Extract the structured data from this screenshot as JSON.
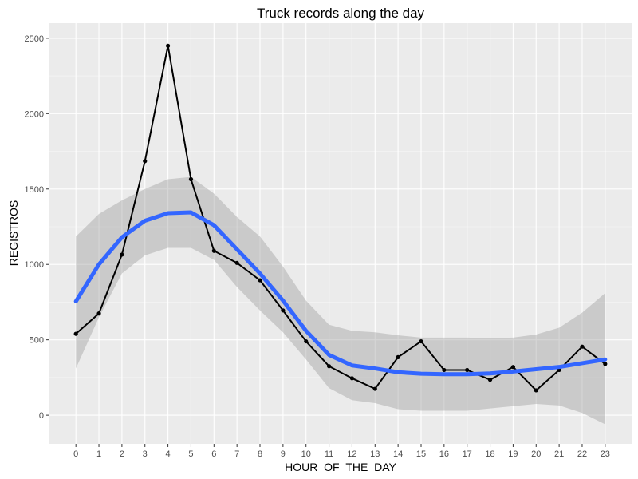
{
  "chart_data": {
    "type": "line",
    "title": "Truck records along the day",
    "xlabel": "HOUR_OF_THE_DAY",
    "ylabel": "REGISTROS",
    "x": [
      0,
      1,
      2,
      3,
      4,
      5,
      6,
      7,
      8,
      9,
      10,
      11,
      12,
      13,
      14,
      15,
      16,
      17,
      18,
      19,
      20,
      21,
      22,
      23
    ],
    "x_tick_labels": [
      "0",
      "1",
      "2",
      "3",
      "4",
      "5",
      "6",
      "7",
      "8",
      "9",
      "10",
      "11",
      "12",
      "13",
      "14",
      "15",
      "16",
      "17",
      "18",
      "19",
      "20",
      "21",
      "22",
      "23"
    ],
    "y_ticks": [
      0,
      500,
      1000,
      1500,
      2000,
      2500
    ],
    "y_tick_labels": [
      "0",
      "500",
      "1000",
      "1500",
      "2000",
      "2500"
    ],
    "xlim": [
      -1.15,
      24.15
    ],
    "ylim": [
      -190,
      2600
    ],
    "grid": true,
    "series": [
      {
        "kind": "line+points",
        "color": "#000000",
        "values": [
          540,
          675,
          1065,
          1685,
          2450,
          1565,
          1090,
          1010,
          895,
          695,
          490,
          325,
          245,
          175,
          385,
          490,
          300,
          300,
          235,
          320,
          165,
          300,
          455,
          340
        ]
      },
      {
        "kind": "smooth",
        "color": "#3366FF",
        "values": [
          755,
          1000,
          1180,
          1290,
          1340,
          1345,
          1260,
          1100,
          940,
          760,
          560,
          400,
          330,
          310,
          285,
          275,
          272,
          272,
          277,
          290,
          305,
          320,
          345,
          370
        ]
      }
    ],
    "confidence_band": {
      "color": "#999999",
      "lower": [
        310,
        650,
        940,
        1060,
        1110,
        1110,
        1030,
        850,
        695,
        550,
        370,
        180,
        100,
        80,
        40,
        30,
        30,
        30,
        45,
        60,
        75,
        65,
        15,
        -60
      ],
      "upper": [
        1185,
        1335,
        1425,
        1500,
        1565,
        1580,
        1470,
        1315,
        1185,
        985,
        760,
        600,
        560,
        550,
        530,
        515,
        515,
        515,
        510,
        515,
        535,
        580,
        680,
        810
      ]
    }
  }
}
